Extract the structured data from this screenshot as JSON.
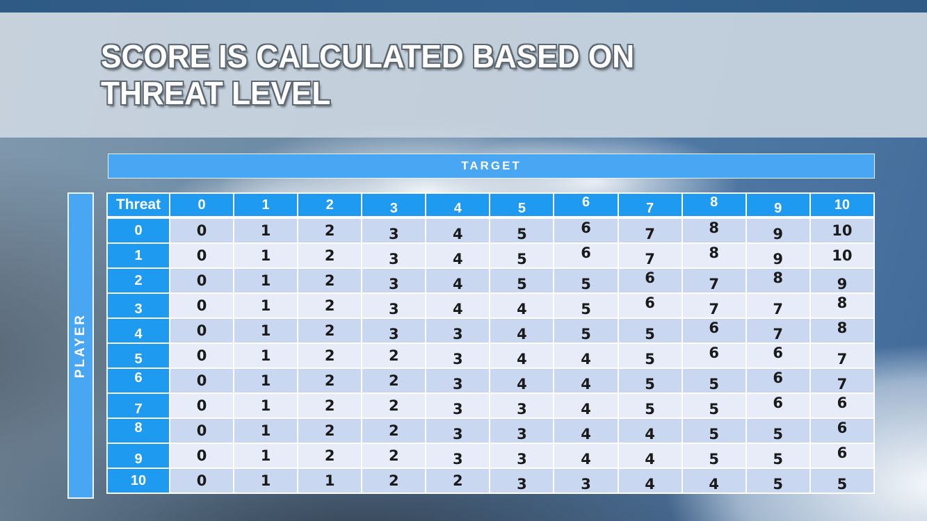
{
  "slide": {
    "title": "SCORE IS CALCULATED BASED ON\nTHREAT LEVEL"
  },
  "matrix": {
    "top_axis_label": "TARGET",
    "left_axis_label": "PLAYER",
    "corner_label": "Threat",
    "column_headers": [
      "0",
      "1",
      "2",
      "3",
      "4",
      "5",
      "6",
      "7",
      "8",
      "9",
      "10"
    ],
    "row_headers": [
      "0",
      "1",
      "2",
      "3",
      "4",
      "5",
      "6",
      "7",
      "8",
      "9",
      "10"
    ],
    "rows": [
      [
        "0",
        "1",
        "2",
        "3",
        "4",
        "5",
        "6",
        "7",
        "8",
        "9",
        "10"
      ],
      [
        "0",
        "1",
        "2",
        "3",
        "4",
        "5",
        "6",
        "7",
        "8",
        "9",
        "10"
      ],
      [
        "0",
        "1",
        "2",
        "3",
        "4",
        "5",
        "5",
        "6",
        "7",
        "8",
        "9"
      ],
      [
        "0",
        "1",
        "2",
        "3",
        "4",
        "4",
        "5",
        "6",
        "7",
        "7",
        "8"
      ],
      [
        "0",
        "1",
        "2",
        "3",
        "3",
        "4",
        "5",
        "5",
        "6",
        "7",
        "8"
      ],
      [
        "0",
        "1",
        "2",
        "2",
        "3",
        "4",
        "4",
        "5",
        "6",
        "6",
        "7"
      ],
      [
        "0",
        "1",
        "2",
        "2",
        "3",
        "4",
        "4",
        "5",
        "5",
        "6",
        "7"
      ],
      [
        "0",
        "1",
        "2",
        "2",
        "3",
        "3",
        "4",
        "5",
        "5",
        "6",
        "6"
      ],
      [
        "0",
        "1",
        "2",
        "2",
        "3",
        "3",
        "4",
        "4",
        "5",
        "5",
        "6"
      ],
      [
        "0",
        "1",
        "2",
        "2",
        "3",
        "3",
        "4",
        "4",
        "5",
        "5",
        "6"
      ],
      [
        "0",
        "1",
        "1",
        "2",
        "2",
        "3",
        "3",
        "4",
        "4",
        "5",
        "5"
      ]
    ]
  },
  "colors": {
    "header_blue": "#1e9af0",
    "banner_blue": "#48a6f2",
    "band_a": "#cad7f1",
    "band_b": "#e7ecf8",
    "cell_text": "#1a1a1a"
  },
  "chart_data": {
    "type": "table",
    "title": "Score is calculated based on threat level",
    "xlabel": "TARGET",
    "ylabel": "PLAYER",
    "corner": "Threat",
    "columns": [
      0,
      1,
      2,
      3,
      4,
      5,
      6,
      7,
      8,
      9,
      10
    ],
    "row_labels": [
      0,
      1,
      2,
      3,
      4,
      5,
      6,
      7,
      8,
      9,
      10
    ],
    "values": [
      [
        0,
        1,
        2,
        3,
        4,
        5,
        6,
        7,
        8,
        9,
        10
      ],
      [
        0,
        1,
        2,
        3,
        4,
        5,
        6,
        7,
        8,
        9,
        10
      ],
      [
        0,
        1,
        2,
        3,
        4,
        5,
        5,
        6,
        7,
        8,
        9
      ],
      [
        0,
        1,
        2,
        3,
        4,
        4,
        5,
        6,
        7,
        7,
        8
      ],
      [
        0,
        1,
        2,
        3,
        3,
        4,
        5,
        5,
        6,
        7,
        8
      ],
      [
        0,
        1,
        2,
        2,
        3,
        4,
        4,
        5,
        6,
        6,
        7
      ],
      [
        0,
        1,
        2,
        2,
        3,
        4,
        4,
        5,
        5,
        6,
        7
      ],
      [
        0,
        1,
        2,
        2,
        3,
        3,
        4,
        5,
        5,
        6,
        6
      ],
      [
        0,
        1,
        2,
        2,
        3,
        3,
        4,
        4,
        5,
        5,
        6
      ],
      [
        0,
        1,
        2,
        2,
        3,
        3,
        4,
        4,
        5,
        5,
        6
      ],
      [
        0,
        1,
        1,
        2,
        2,
        3,
        3,
        4,
        4,
        5,
        5
      ]
    ]
  }
}
